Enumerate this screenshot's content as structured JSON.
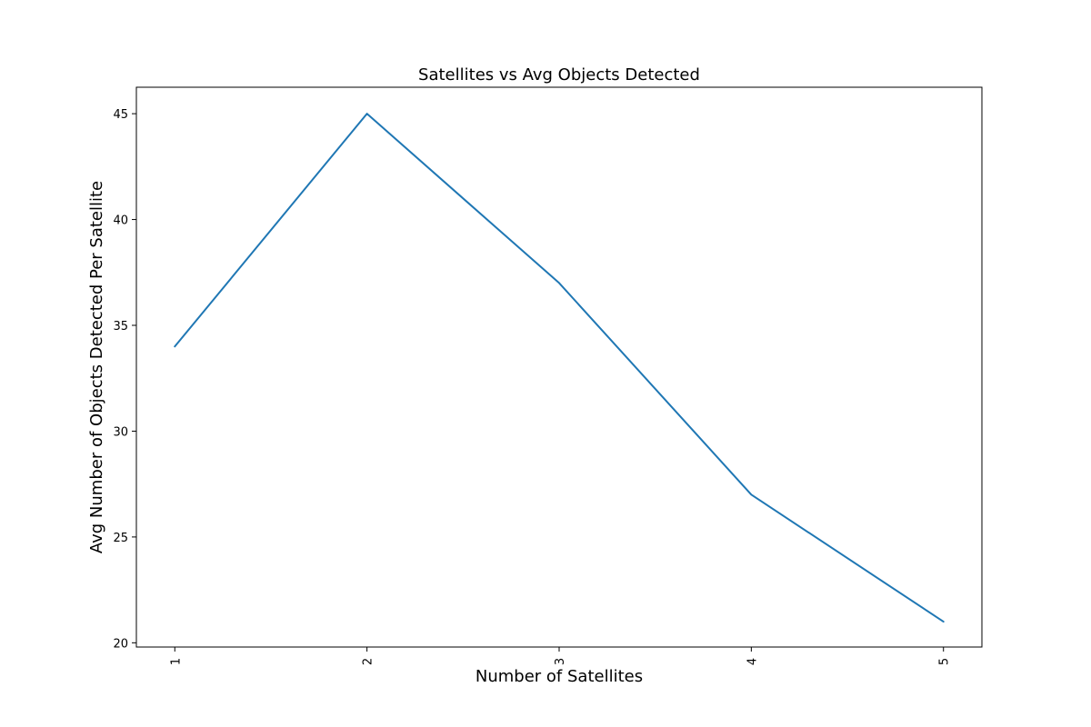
{
  "chart_data": {
    "type": "line",
    "title": "Satellites vs Avg Objects Detected",
    "xlabel": "Number of Satellites",
    "ylabel": "Avg Number of Objects Detected Per Satellite",
    "x": [
      1,
      2,
      3,
      4,
      5
    ],
    "x_tick_labels": [
      "1",
      "2",
      "3",
      "4",
      "5"
    ],
    "series": [
      {
        "values": [
          34,
          45,
          37,
          27,
          21
        ],
        "color": "#1f77b4"
      }
    ],
    "xlim": [
      0.8,
      5.2
    ],
    "ylim": [
      19.8,
      46.25
    ],
    "y_ticks": [
      20,
      25,
      30,
      35,
      40,
      45
    ],
    "grid": false
  }
}
